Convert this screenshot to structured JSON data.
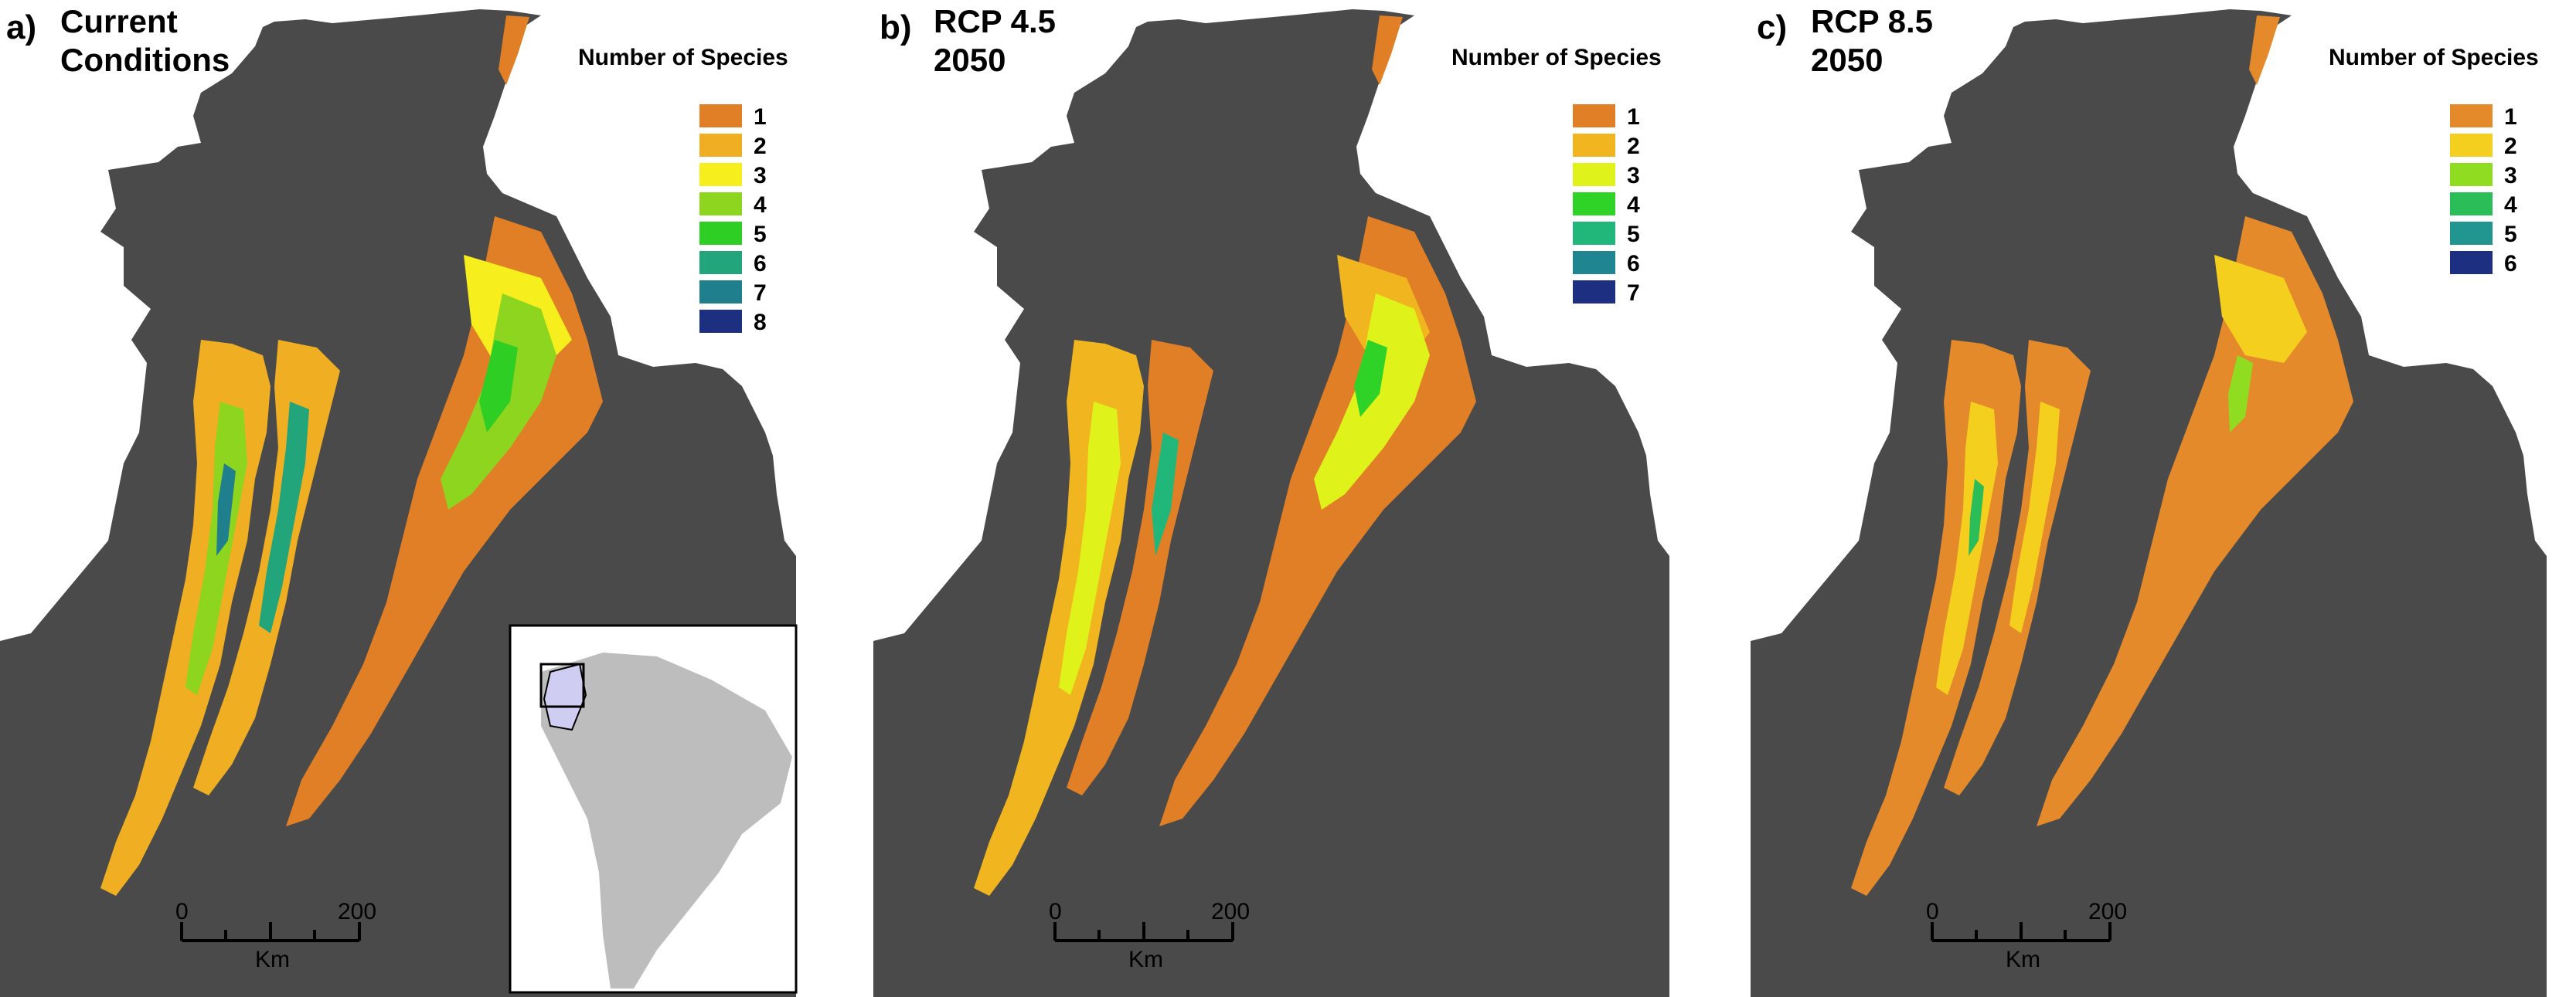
{
  "panels": [
    {
      "letter": "a)",
      "title_lines": [
        "Current",
        "Conditions"
      ],
      "legend_title": "Number of Species",
      "legend": [
        {
          "label": "1",
          "color": "#e07f26"
        },
        {
          "label": "2",
          "color": "#f0ae22"
        },
        {
          "label": "3",
          "color": "#f7ef1d"
        },
        {
          "label": "4",
          "color": "#8ed51f"
        },
        {
          "label": "5",
          "color": "#2fce24"
        },
        {
          "label": "6",
          "color": "#23a57c"
        },
        {
          "label": "7",
          "color": "#1f7f8d"
        },
        {
          "label": "8",
          "color": "#1c2f80"
        }
      ],
      "scale": {
        "zero": "0",
        "max": "200",
        "unit": "Km"
      },
      "has_inset": true
    },
    {
      "letter": "b)",
      "title_lines": [
        "RCP 4.5",
        "2050"
      ],
      "legend_title": "Number of Species",
      "legend": [
        {
          "label": "1",
          "color": "#e07f26"
        },
        {
          "label": "2",
          "color": "#f0b51f"
        },
        {
          "label": "3",
          "color": "#dff21a"
        },
        {
          "label": "4",
          "color": "#2fd227"
        },
        {
          "label": "5",
          "color": "#22b77a"
        },
        {
          "label": "6",
          "color": "#1f8590"
        },
        {
          "label": "7",
          "color": "#1c2f80"
        }
      ],
      "scale": {
        "zero": "0",
        "max": "200",
        "unit": "Km"
      },
      "has_inset": false
    },
    {
      "letter": "c)",
      "title_lines": [
        "RCP 8.5",
        "2050"
      ],
      "legend_title": "Number of Species",
      "legend": [
        {
          "label": "1",
          "color": "#e58a2a"
        },
        {
          "label": "2",
          "color": "#f5cf1d"
        },
        {
          "label": "3",
          "color": "#8fdc21"
        },
        {
          "label": "4",
          "color": "#2bbd57"
        },
        {
          "label": "5",
          "color": "#21958f"
        },
        {
          "label": "6",
          "color": "#1c2f80"
        }
      ],
      "scale": {
        "zero": "0",
        "max": "200",
        "unit": "Km"
      },
      "has_inset": false
    }
  ],
  "colors": {
    "land": "#4a4a4a",
    "background": "#ffffff",
    "inset_continent": "#bdbdbd",
    "inset_highlight": "#cfcdf2"
  }
}
